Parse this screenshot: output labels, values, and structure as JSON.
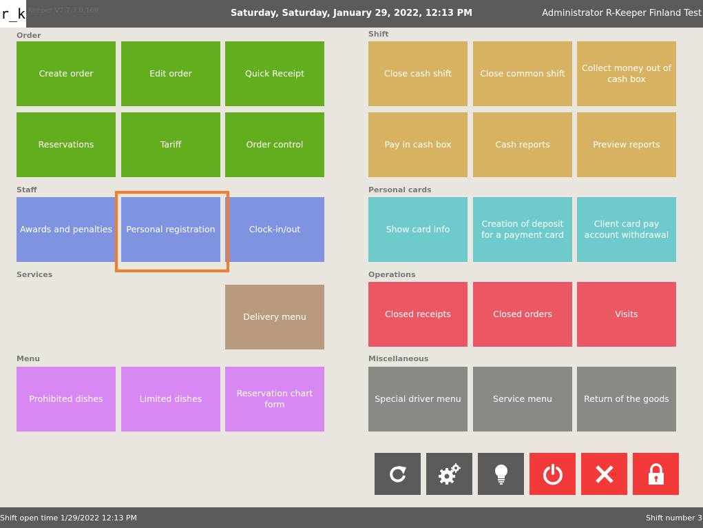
{
  "header": {
    "logo": "r_k",
    "version": "Keeper V7 7.7.0.169",
    "datetime": "Saturday, Saturday, January 29, 2022, 12:13 PM",
    "user": "Administrator R-Keeper Finland Test"
  },
  "sections": {
    "order": "Order",
    "shift": "Shift",
    "staff": "Staff",
    "personal_cards": "Personal cards",
    "services": "Services",
    "operations": "Operations",
    "menu": "Menu",
    "misc": "Miscellaneous"
  },
  "tiles": {
    "create_order": "Create order",
    "edit_order": "Edit order",
    "quick_receipt": "Quick Receipt",
    "reservations": "Reservations",
    "tariff": "Tariff",
    "order_control": "Order control",
    "close_cash_shift": "Close cash shift",
    "close_common_shift": "Close common shift",
    "collect_money": "Collect money out of cash box",
    "pay_in_cash_box": "Pay in cash box",
    "cash_reports": "Cash reports",
    "preview_reports": "Preview reports",
    "awards_penalties": "Awards and penalties",
    "personal_registration": "Personal registration",
    "clock_in_out": "Clock-in/out",
    "show_card_info": "Show card info",
    "creation_deposit": "Creation of deposit for a payment card",
    "client_card_withdrawal": "Client card pay account withdrawal",
    "delivery_menu": "Delivery menu",
    "closed_receipts": "Closed receipts",
    "closed_orders": "Closed orders",
    "visits": "Visits",
    "prohibited_dishes": "Prohibited dishes",
    "limited_dishes": "Limited dishes",
    "reservation_chart_form": "Reservation chart form",
    "special_driver_menu": "Special driver menu",
    "service_menu": "Service menu",
    "return_goods": "Return of the goods"
  },
  "actions": {
    "refresh": "refresh-icon",
    "settings": "gears-icon",
    "hint": "lightbulb-icon",
    "power": "power-icon",
    "close": "close-icon",
    "lock": "lock-icon"
  },
  "footer": {
    "shift_open_time": "Shift open time 1/29/2022 12:13 PM",
    "shift_number": "Shift number 3"
  },
  "colors": {
    "order": "#62ae1f",
    "shift": "#d6b261",
    "staff": "#7f93e0",
    "personal_cards": "#6fcbcb",
    "operations": "#ea5963",
    "services": "#b89b7e",
    "menu": "#d788f2",
    "misc": "#8a8985",
    "highlight": "#f27c2a"
  }
}
